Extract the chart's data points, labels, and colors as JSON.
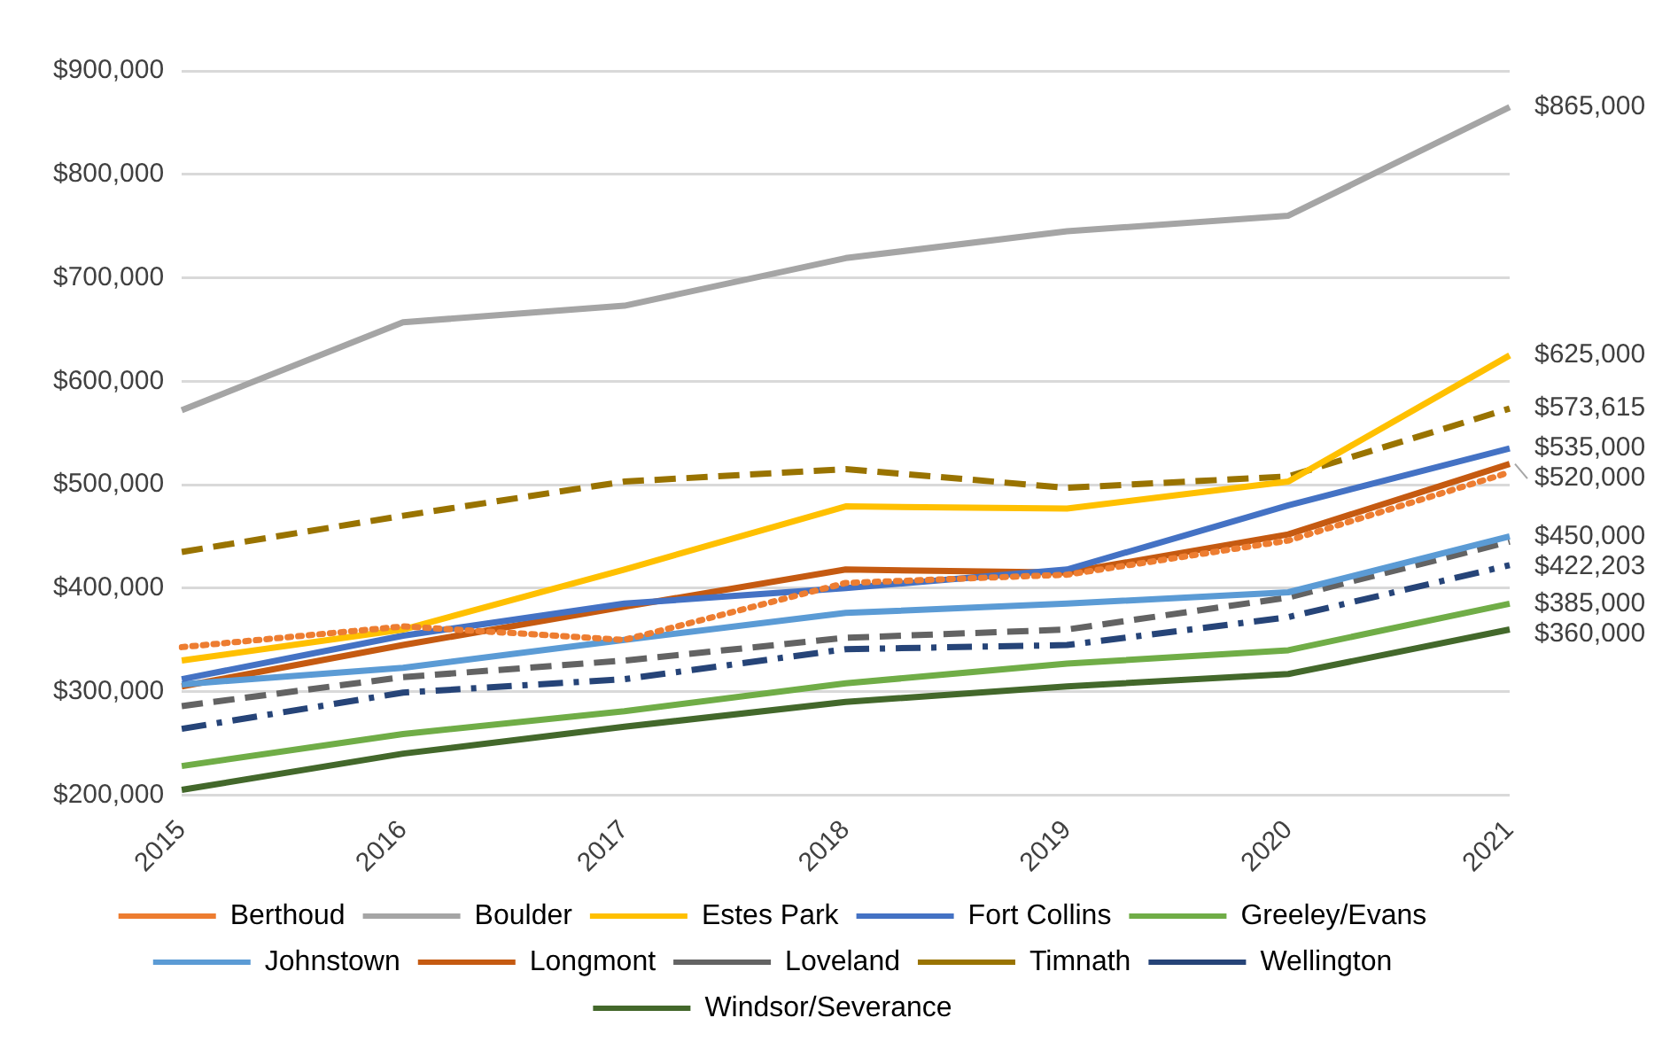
{
  "chart_data": {
    "type": "line",
    "categories": [
      "2015",
      "2016",
      "2017",
      "2018",
      "2019",
      "2020",
      "2021"
    ],
    "ylim": [
      200000,
      900000
    ],
    "yticks": [
      {
        "value": 200000,
        "label": "$200,000"
      },
      {
        "value": 300000,
        "label": "$300,000"
      },
      {
        "value": 400000,
        "label": "$400,000"
      },
      {
        "value": 500000,
        "label": "$500,000"
      },
      {
        "value": 600000,
        "label": "$600,000"
      },
      {
        "value": 700000,
        "label": "$700,000"
      },
      {
        "value": 800000,
        "label": "$800,000"
      },
      {
        "value": 900000,
        "label": "$900,000"
      }
    ],
    "grid": "y",
    "legend": "bottom",
    "marker": "none",
    "series": [
      {
        "name": "Berthoud",
        "color": "#ed7d31",
        "line_style": "dotted",
        "values": [
          343000,
          363000,
          350000,
          405000,
          413000,
          446000,
          512000
        ],
        "value_labels": [
          null,
          null,
          null,
          null,
          null,
          null,
          null
        ]
      },
      {
        "name": "Boulder",
        "color": "#a5a5a5",
        "values": [
          572000,
          657000,
          673000,
          719000,
          745000,
          760000,
          865000
        ],
        "value_labels": [
          null,
          null,
          null,
          null,
          null,
          null,
          "$865,000"
        ]
      },
      {
        "name": "Estes Park",
        "color": "#ffc000",
        "values": [
          330000,
          360000,
          418000,
          479000,
          477000,
          503000,
          625000
        ],
        "value_labels": [
          null,
          null,
          null,
          null,
          null,
          null,
          "$625,000"
        ]
      },
      {
        "name": "Fort Collins",
        "color": "#4472c4",
        "values": [
          312000,
          354000,
          385000,
          400000,
          418000,
          480000,
          535000
        ],
        "value_labels": [
          null,
          null,
          null,
          null,
          null,
          null,
          "$535,000"
        ]
      },
      {
        "name": "Greeley/Evans",
        "color": "#70ad47",
        "values": [
          228000,
          259000,
          281000,
          308000,
          327000,
          340000,
          385000
        ],
        "value_labels": [
          null,
          null,
          null,
          null,
          null,
          null,
          "$385,000"
        ]
      },
      {
        "name": "Johnstown",
        "color": "#5b9bd5",
        "values": [
          307000,
          323000,
          350000,
          376000,
          385000,
          396000,
          450000
        ],
        "value_labels": [
          null,
          null,
          null,
          null,
          null,
          null,
          "$450,000"
        ]
      },
      {
        "name": "Longmont",
        "color": "#c55a11",
        "values": [
          305000,
          345000,
          382000,
          418000,
          415000,
          452000,
          520000
        ],
        "value_labels": [
          null,
          null,
          null,
          null,
          null,
          null,
          "$520,000"
        ]
      },
      {
        "name": "Loveland",
        "color": "#636363",
        "line_style": "dashed",
        "values": [
          286000,
          314000,
          330000,
          352000,
          360000,
          391000,
          445000
        ],
        "value_labels": [
          null,
          null,
          null,
          null,
          null,
          null,
          null
        ]
      },
      {
        "name": "Timnath",
        "color": "#997300",
        "line_style": "dashed",
        "values": [
          435000,
          470000,
          503000,
          515000,
          497000,
          508000,
          573615
        ],
        "value_labels": [
          null,
          null,
          null,
          null,
          null,
          null,
          "$573,615"
        ]
      },
      {
        "name": "Wellington",
        "color": "#264478",
        "line_style": "dashdot",
        "values": [
          264000,
          299000,
          312000,
          341000,
          345000,
          372000,
          422203
        ],
        "value_labels": [
          null,
          null,
          null,
          null,
          null,
          null,
          "$422,203"
        ]
      },
      {
        "name": "Windsor/Severance",
        "color": "#43682b",
        "values": [
          205000,
          240000,
          266000,
          290000,
          305000,
          317000,
          360000
        ],
        "value_labels": [
          null,
          null,
          null,
          null,
          null,
          null,
          "$360,000"
        ]
      }
    ]
  }
}
